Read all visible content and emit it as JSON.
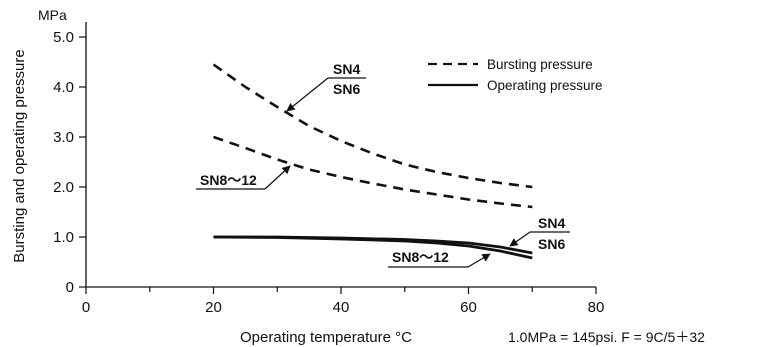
{
  "chart_data": {
    "type": "line",
    "xlabel": "Operating temperature  °C",
    "ylabel": "Bursting and operating pressure",
    "yunit": "MPa",
    "xlim": [
      0,
      80
    ],
    "ylim": [
      0,
      5.0
    ],
    "xticks": [
      "0",
      "20",
      "40",
      "60",
      "80"
    ],
    "yticks": [
      "0",
      "1.0",
      "2.0",
      "3.0",
      "4.0",
      "5.0"
    ],
    "grid": false,
    "legend_position": "top-right",
    "legend": [
      {
        "label": "Bursting pressure",
        "style": "dashed"
      },
      {
        "label": "Operating pressure",
        "style": "solid"
      }
    ],
    "series": [
      {
        "group": "bursting",
        "style": "dashed",
        "x": [
          20,
          25,
          30,
          35,
          40,
          45,
          50,
          55,
          60,
          65,
          70
        ],
        "y": [
          4.45,
          4.0,
          3.6,
          3.22,
          2.92,
          2.67,
          2.45,
          2.3,
          2.18,
          2.08,
          2.0
        ]
      },
      {
        "group": "bursting",
        "style": "dashed",
        "x": [
          20,
          25,
          30,
          35,
          40,
          45,
          50,
          55,
          60,
          65,
          70
        ],
        "y": [
          3.0,
          2.78,
          2.55,
          2.35,
          2.2,
          2.07,
          1.95,
          1.85,
          1.75,
          1.67,
          1.6
        ]
      },
      {
        "group": "operating",
        "style": "solid",
        "x": [
          20,
          30,
          40,
          50,
          55,
          60,
          65,
          70
        ],
        "y": [
          1.0,
          1.0,
          0.98,
          0.95,
          0.92,
          0.88,
          0.8,
          0.68
        ]
      },
      {
        "group": "operating",
        "style": "solid",
        "x": [
          20,
          30,
          40,
          50,
          55,
          60,
          65,
          70
        ],
        "y": [
          1.0,
          0.99,
          0.96,
          0.92,
          0.88,
          0.82,
          0.72,
          0.58
        ]
      }
    ],
    "annotations": {
      "burst_upper": [
        "SN4",
        "SN6"
      ],
      "burst_lower": [
        "SN8～12"
      ],
      "op_upper": [
        "SN4",
        "SN6"
      ],
      "op_lower": [
        "SN8～12"
      ]
    },
    "footnote": "1.0MPa = 145psi.   F = 9C/5＋32"
  }
}
